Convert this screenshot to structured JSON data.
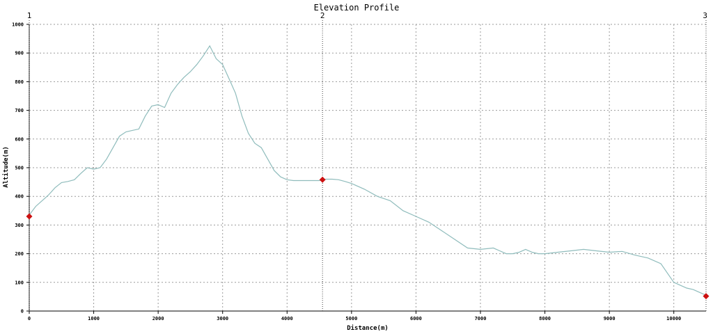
{
  "chart_data": {
    "type": "line",
    "title": "Elevation Profile",
    "xlabel": "Distance(m)",
    "ylabel": "Altitude(m)",
    "xlim": [
      0,
      10500
    ],
    "ylim": [
      0,
      1000
    ],
    "x_ticks": [
      0,
      1000,
      2000,
      3000,
      4000,
      5000,
      6000,
      7000,
      8000,
      9000,
      10000
    ],
    "y_ticks": [
      0,
      100,
      200,
      300,
      400,
      500,
      600,
      700,
      800,
      900,
      1000
    ],
    "grid": true,
    "colors": {
      "line": "#8fbcbc",
      "marker": "#cc1111",
      "grid": "#9a9a9a"
    },
    "series": [
      {
        "x": [
          0,
          100,
          200,
          300,
          400,
          500,
          600,
          700,
          800,
          900,
          1000,
          1100,
          1200,
          1300,
          1400,
          1500,
          1600,
          1700,
          1800,
          1900,
          2000,
          2100,
          2200,
          2300,
          2400,
          2500,
          2600,
          2700,
          2800,
          2900,
          3000,
          3100,
          3200,
          3300,
          3400,
          3500,
          3600,
          3700,
          3800,
          3900,
          4000,
          4100,
          4200,
          4300,
          4400,
          4500,
          4600,
          4700,
          4800,
          4900,
          5000,
          5200,
          5400,
          5600,
          5800,
          6000,
          6200,
          6400,
          6600,
          6800,
          7000,
          7200,
          7300,
          7400,
          7500,
          7600,
          7700,
          7800,
          7900,
          8000,
          8200,
          8400,
          8600,
          8800,
          9000,
          9200,
          9400,
          9600,
          9800,
          10000,
          10100,
          10200,
          10300,
          10400,
          10500
        ],
        "y": [
          335,
          365,
          385,
          405,
          430,
          448,
          452,
          458,
          480,
          500,
          495,
          500,
          530,
          570,
          610,
          625,
          630,
          635,
          680,
          715,
          720,
          710,
          760,
          790,
          815,
          835,
          860,
          890,
          925,
          880,
          860,
          810,
          760,
          680,
          620,
          585,
          570,
          530,
          490,
          468,
          458,
          455,
          455,
          455,
          455,
          455,
          460,
          460,
          458,
          452,
          445,
          425,
          400,
          385,
          350,
          330,
          310,
          280,
          250,
          220,
          215,
          220,
          210,
          200,
          200,
          205,
          215,
          205,
          200,
          200,
          205,
          210,
          215,
          210,
          205,
          208,
          195,
          185,
          165,
          100,
          90,
          80,
          75,
          65,
          55
        ]
      }
    ],
    "waypoints": [
      {
        "label": "1",
        "x": 0,
        "y": 330
      },
      {
        "label": "2",
        "x": 4550,
        "y": 458
      },
      {
        "label": "3",
        "x": 10500,
        "y": 52
      }
    ]
  }
}
